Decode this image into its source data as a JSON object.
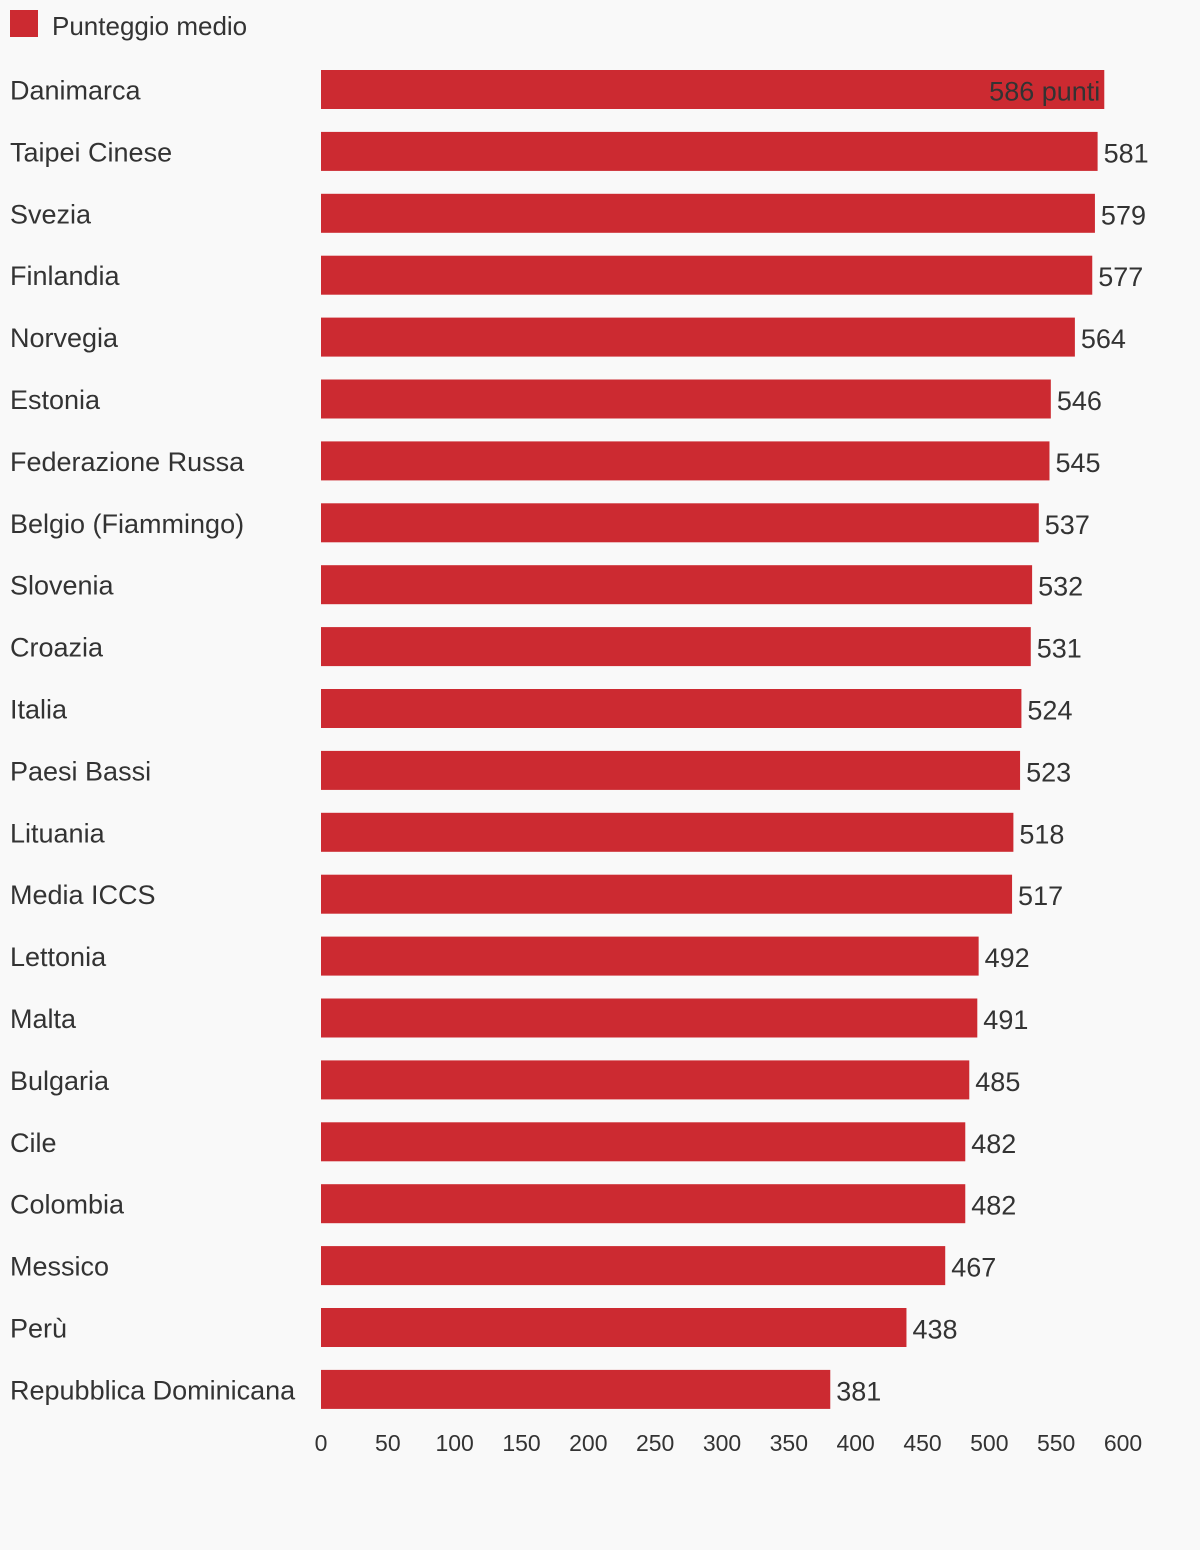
{
  "chart_data": {
    "type": "bar",
    "orientation": "horizontal",
    "series": [
      {
        "name": "Punteggio medio",
        "color": "#cc2a31",
        "values": [
          586,
          581,
          579,
          577,
          564,
          546,
          545,
          537,
          532,
          531,
          524,
          523,
          518,
          517,
          492,
          491,
          485,
          482,
          482,
          467,
          438,
          381
        ]
      }
    ],
    "categories": [
      "Danimarca",
      "Taipei Cinese",
      "Svezia",
      "Finlandia",
      "Norvegia",
      "Estonia",
      "Federazione Russa",
      "Belgio (Fiammingo)",
      "Slovenia",
      "Croazia",
      "Italia",
      "Paesi Bassi",
      "Lituania",
      "Media ICCS",
      "Lettonia",
      "Malta",
      "Bulgaria",
      "Cile",
      "Colombia",
      "Messico",
      "Perù",
      "Repubblica Dominicana"
    ],
    "data_labels": [
      "586 punti",
      "581",
      "579",
      "577",
      "564",
      "546",
      "545",
      "537",
      "532",
      "531",
      "524",
      "523",
      "518",
      "517",
      "492",
      "491",
      "485",
      "482",
      "482",
      "467",
      "438",
      "381"
    ],
    "xlim": [
      0,
      600
    ],
    "xticks": [
      0,
      50,
      100,
      150,
      200,
      250,
      300,
      350,
      400,
      450,
      500,
      550,
      600
    ],
    "legend": {
      "position": "top-left"
    },
    "grid": false,
    "title": "",
    "xlabel": "",
    "ylabel": ""
  }
}
